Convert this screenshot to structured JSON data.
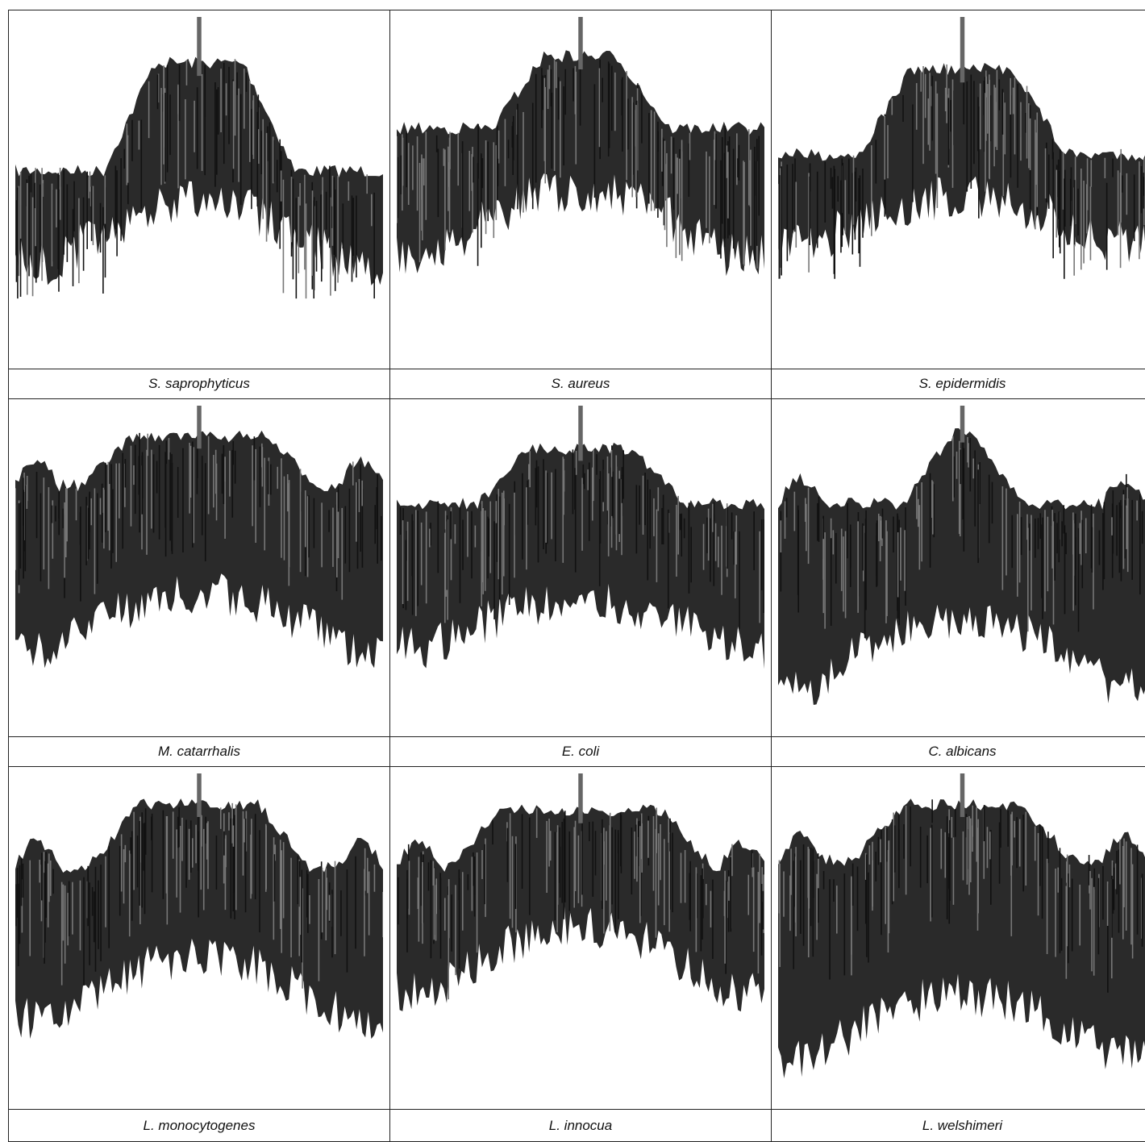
{
  "figure": {
    "panels": [
      {
        "caption": "S. saprophyticus"
      },
      {
        "caption": "S. aureus"
      },
      {
        "caption": "S. epidermidis"
      },
      {
        "caption": "M. catarrhalis"
      },
      {
        "caption": "E. coli"
      },
      {
        "caption": "C. albicans"
      },
      {
        "caption": "L. monocytogenes"
      },
      {
        "caption": "L. innocua"
      },
      {
        "caption": "L. welshimeri"
      }
    ]
  }
}
